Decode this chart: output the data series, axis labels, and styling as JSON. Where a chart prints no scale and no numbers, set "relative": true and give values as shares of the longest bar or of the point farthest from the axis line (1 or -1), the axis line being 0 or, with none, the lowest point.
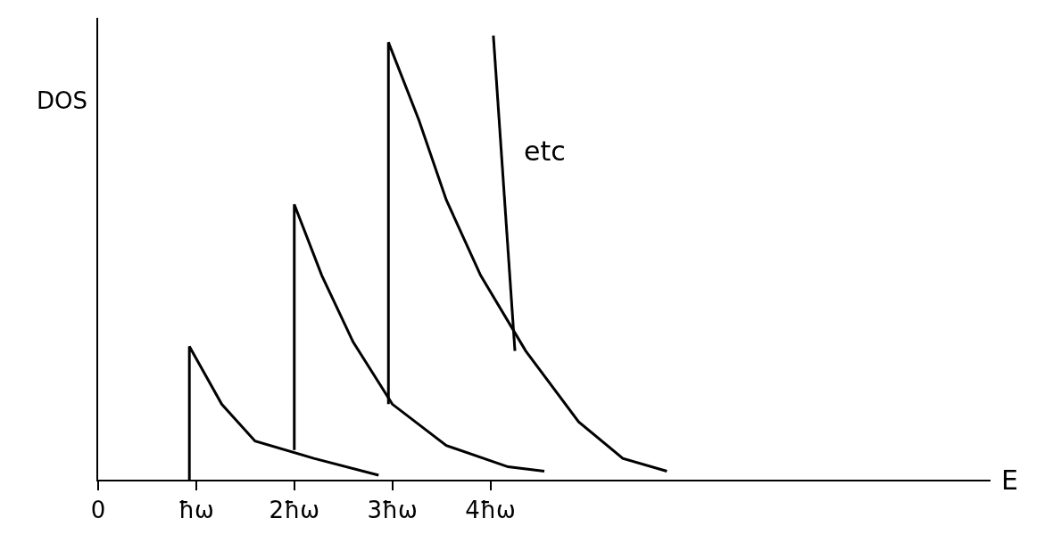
{
  "chart_data": {
    "type": "line",
    "relative": true,
    "xlabel": "E",
    "ylabel": "DOS",
    "annotations": [
      "etc"
    ],
    "xlim": [
      0,
      9.1
    ],
    "xticks": [
      0,
      {
        "value": 1,
        "label": "ħω"
      },
      {
        "value": 2,
        "label": "2ħω"
      },
      {
        "value": 3,
        "label": "3ħω"
      },
      {
        "value": 4,
        "label": "4ħω"
      }
    ],
    "marker": "none",
    "line_style": "solid",
    "series": [
      {
        "color": "#000000",
        "x": [
          0.93,
          0.93,
          1.26,
          1.6,
          2.2,
          2.86
        ],
        "values": [
          0,
          0.3,
          0.17,
          0.087,
          0.048,
          0.01
        ]
      },
      {
        "color": "#000000",
        "x": [
          2.0,
          2.0,
          2.28,
          2.6,
          3.0,
          3.55,
          4.18,
          4.55
        ],
        "values": [
          0.067,
          0.62,
          0.46,
          0.31,
          0.17,
          0.077,
          0.029,
          0.019
        ]
      },
      {
        "color": "#000000",
        "x": [
          2.96,
          2.96,
          3.27,
          3.55,
          3.9,
          4.36,
          4.9,
          5.35,
          5.8
        ],
        "values": [
          0.17,
          0.985,
          0.81,
          0.63,
          0.46,
          0.29,
          0.13,
          0.048,
          0.019
        ]
      },
      {
        "color": "#000000",
        "x": [
          4.03,
          4.25
        ],
        "values": [
          1.0,
          0.29
        ]
      }
    ]
  }
}
